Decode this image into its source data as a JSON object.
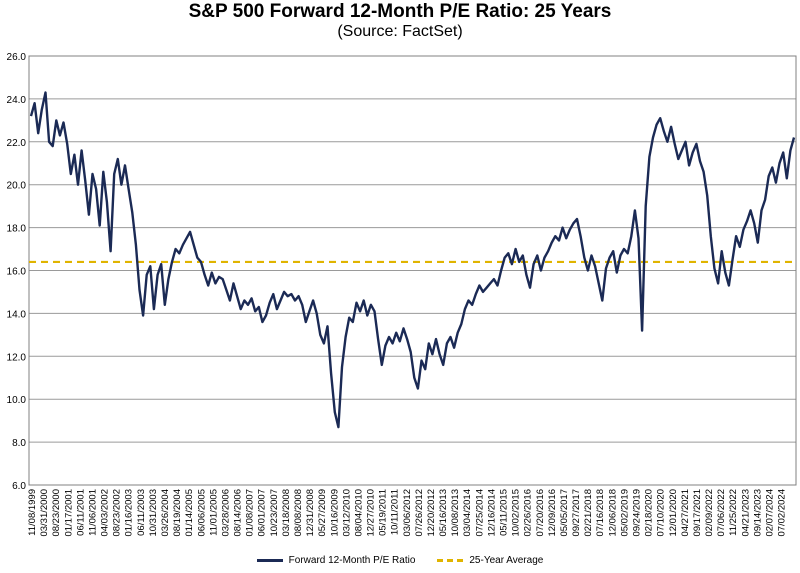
{
  "chart_data": {
    "type": "line",
    "title": "S&P 500 Forward 12-Month P/E Ratio: 25 Years",
    "subtitle": "(Source: FactSet)",
    "xlabel": "",
    "ylabel": "",
    "ylim": [
      6.0,
      26.0
    ],
    "yticks": [
      "6.0",
      "8.0",
      "10.0",
      "12.0",
      "14.0",
      "16.0",
      "18.0",
      "20.0",
      "22.0",
      "24.0",
      "26.0"
    ],
    "xticks": [
      "11/08/1999",
      "03/31/2000",
      "08/23/2000",
      "01/17/2001",
      "06/11/2001",
      "11/06/2001",
      "04/03/2002",
      "08/23/2002",
      "01/16/2003",
      "06/11/2003",
      "10/31/2003",
      "03/26/2004",
      "08/19/2004",
      "01/14/2005",
      "06/06/2005",
      "11/01/2005",
      "03/28/2006",
      "08/14/2006",
      "01/08/2007",
      "06/01/2007",
      "10/23/2007",
      "03/18/2008",
      "08/08/2008",
      "12/31/2008",
      "05/27/2009",
      "10/16/2009",
      "03/12/2010",
      "08/04/2010",
      "12/27/2010",
      "05/19/2011",
      "10/11/2011",
      "03/06/2012",
      "07/26/2012",
      "12/20/2012",
      "05/16/2013",
      "10/08/2013",
      "03/04/2014",
      "07/25/2014",
      "12/16/2014",
      "05/11/2015",
      "10/02/2015",
      "02/26/2016",
      "07/20/2016",
      "12/09/2016",
      "05/05/2017",
      "09/27/2017",
      "02/21/2018",
      "07/16/2018",
      "12/06/2018",
      "05/02/2019",
      "09/24/2019",
      "02/18/2020",
      "07/10/2020",
      "12/01/2020",
      "04/27/2021",
      "09/17/2021",
      "02/09/2022",
      "07/06/2022",
      "11/25/2022",
      "04/21/2023",
      "09/14/2023",
      "02/07/2024",
      "07/02/2024"
    ],
    "series": [
      {
        "name": "Forward 12-Month P/E Ratio",
        "color": "#1b2a55",
        "values": [
          23.2,
          23.8,
          22.4,
          23.5,
          24.3,
          22.0,
          21.8,
          23.0,
          22.3,
          22.9,
          21.9,
          20.5,
          21.4,
          20.0,
          21.6,
          20.2,
          18.6,
          20.5,
          19.8,
          18.1,
          20.6,
          19.2,
          16.9,
          20.5,
          21.2,
          20.0,
          20.9,
          19.8,
          18.7,
          17.2,
          15.1,
          13.9,
          15.8,
          16.2,
          14.2,
          15.8,
          16.3,
          14.4,
          15.6,
          16.4,
          17.0,
          16.8,
          17.2,
          17.5,
          17.8,
          17.2,
          16.6,
          16.4,
          15.8,
          15.3,
          15.9,
          15.4,
          15.7,
          15.6,
          15.1,
          14.6,
          15.4,
          14.8,
          14.2,
          14.6,
          14.4,
          14.7,
          14.1,
          14.3,
          13.6,
          13.9,
          14.5,
          14.9,
          14.2,
          14.6,
          15.0,
          14.8,
          14.9,
          14.6,
          14.8,
          14.4,
          13.6,
          14.1,
          14.6,
          14.0,
          13.0,
          12.6,
          13.4,
          11.2,
          9.4,
          8.7,
          11.5,
          12.9,
          13.8,
          13.6,
          14.5,
          14.1,
          14.6,
          13.9,
          14.4,
          14.1,
          12.8,
          11.6,
          12.5,
          12.9,
          12.6,
          13.1,
          12.7,
          13.3,
          12.8,
          12.2,
          11.0,
          10.5,
          11.8,
          11.4,
          12.6,
          12.1,
          12.8,
          12.1,
          11.6,
          12.6,
          12.9,
          12.4,
          13.1,
          13.5,
          14.2,
          14.6,
          14.4,
          14.9,
          15.3,
          15.0,
          15.2,
          15.4,
          15.6,
          15.3,
          16.0,
          16.6,
          16.8,
          16.3,
          17.0,
          16.4,
          16.7,
          15.8,
          15.2,
          16.3,
          16.7,
          16.0,
          16.6,
          16.9,
          17.3,
          17.6,
          17.4,
          18.0,
          17.5,
          17.9,
          18.2,
          18.4,
          17.6,
          16.6,
          16.0,
          16.7,
          16.2,
          15.4,
          14.6,
          16.1,
          16.6,
          16.9,
          15.9,
          16.7,
          17.0,
          16.8,
          17.6,
          18.8,
          17.5,
          13.2,
          19.0,
          21.3,
          22.2,
          22.8,
          23.1,
          22.5,
          22.0,
          22.7,
          21.9,
          21.2,
          21.6,
          22.0,
          20.9,
          21.5,
          21.9,
          21.1,
          20.6,
          19.5,
          17.6,
          16.1,
          15.4,
          16.9,
          15.9,
          15.3,
          16.5,
          17.6,
          17.1,
          17.9,
          18.3,
          18.8,
          18.2,
          17.3,
          18.8,
          19.3,
          20.4,
          20.8,
          20.1,
          21.0,
          21.5,
          20.3,
          21.6,
          22.2
        ]
      },
      {
        "name": "25-Year Average",
        "color": "#e0b400",
        "values": [
          16.4
        ]
      }
    ],
    "grid": true,
    "legend_position": "bottom"
  }
}
